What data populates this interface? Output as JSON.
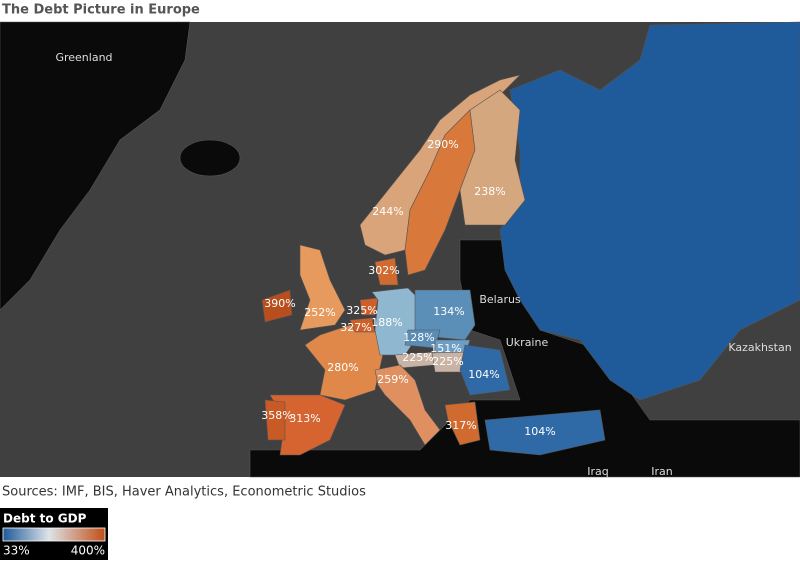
{
  "header": {
    "title": "The Debt Picture in Europe"
  },
  "map": {
    "place_labels": [
      "Greenland",
      "Belarus",
      "Ukraine",
      "Kazakhstan",
      "Iraq",
      "Iran"
    ],
    "value_labels": [
      "244%",
      "290%",
      "238%",
      "302%",
      "252%",
      "390%",
      "325%",
      "327%",
      "188%",
      "134%",
      "128%",
      "151%",
      "225%",
      "225%",
      "280%",
      "259%",
      "104%",
      "358%",
      "313%",
      "317%",
      "104%"
    ]
  },
  "footer": {
    "source": "Sources: IMF, BIS, Haver Analytics, Econometric Studios"
  },
  "legend": {
    "title": "Debt to GDP",
    "min_label": "33%",
    "max_label": "400%"
  }
}
